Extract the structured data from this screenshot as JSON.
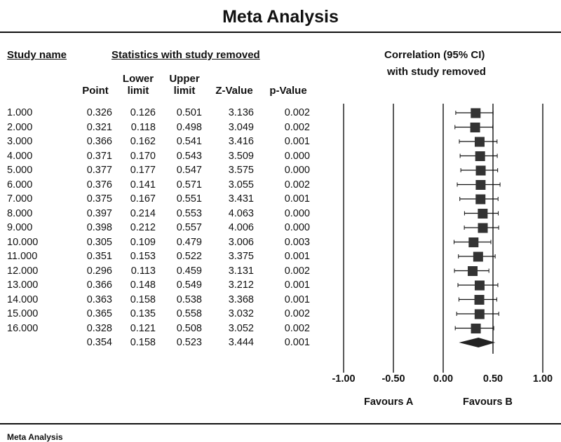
{
  "title": "Meta Analysis",
  "footer": "Meta Analysis",
  "headers": {
    "study_name": "Study name",
    "stats_group": "Statistics with study removed",
    "ci_group_line1": "Correlation (95% CI)",
    "ci_group_line2": "with study removed",
    "point": "Point",
    "lower_1": "Lower",
    "lower_2": "limit",
    "upper_1": "Upper",
    "upper_2": "limit",
    "zvalue": "Z-Value",
    "pvalue": "p-Value"
  },
  "favours": {
    "left": "Favours A",
    "right": "Favours B"
  },
  "chart_data": {
    "type": "forest",
    "xlim": [
      -1.0,
      1.0
    ],
    "x_ticks": [
      "-1.00",
      "-0.50",
      "0.00",
      "0.50",
      "1.00"
    ],
    "x_tick_values": [
      -1.0,
      -0.5,
      0.0,
      0.5,
      1.0
    ],
    "rows": [
      {
        "study": "1.000",
        "point": "0.326",
        "lower": "0.126",
        "upper": "0.501",
        "z": "3.136",
        "p": "0.002"
      },
      {
        "study": "2.000",
        "point": "0.321",
        "lower": "0.118",
        "upper": "0.498",
        "z": "3.049",
        "p": "0.002"
      },
      {
        "study": "3.000",
        "point": "0.366",
        "lower": "0.162",
        "upper": "0.541",
        "z": "3.416",
        "p": "0.001"
      },
      {
        "study": "4.000",
        "point": "0.371",
        "lower": "0.170",
        "upper": "0.543",
        "z": "3.509",
        "p": "0.000"
      },
      {
        "study": "5.000",
        "point": "0.377",
        "lower": "0.177",
        "upper": "0.547",
        "z": "3.575",
        "p": "0.000"
      },
      {
        "study": "6.000",
        "point": "0.376",
        "lower": "0.141",
        "upper": "0.571",
        "z": "3.055",
        "p": "0.002"
      },
      {
        "study": "7.000",
        "point": "0.375",
        "lower": "0.167",
        "upper": "0.551",
        "z": "3.431",
        "p": "0.001"
      },
      {
        "study": "8.000",
        "point": "0.397",
        "lower": "0.214",
        "upper": "0.553",
        "z": "4.063",
        "p": "0.000"
      },
      {
        "study": "9.000",
        "point": "0.398",
        "lower": "0.212",
        "upper": "0.557",
        "z": "4.006",
        "p": "0.000"
      },
      {
        "study": "10.000",
        "point": "0.305",
        "lower": "0.109",
        "upper": "0.479",
        "z": "3.006",
        "p": "0.003"
      },
      {
        "study": "11.000",
        "point": "0.351",
        "lower": "0.153",
        "upper": "0.522",
        "z": "3.375",
        "p": "0.001"
      },
      {
        "study": "12.000",
        "point": "0.296",
        "lower": "0.113",
        "upper": "0.459",
        "z": "3.131",
        "p": "0.002"
      },
      {
        "study": "13.000",
        "point": "0.366",
        "lower": "0.148",
        "upper": "0.549",
        "z": "3.212",
        "p": "0.001"
      },
      {
        "study": "14.000",
        "point": "0.363",
        "lower": "0.158",
        "upper": "0.538",
        "z": "3.368",
        "p": "0.001"
      },
      {
        "study": "15.000",
        "point": "0.365",
        "lower": "0.135",
        "upper": "0.558",
        "z": "3.032",
        "p": "0.002"
      },
      {
        "study": "16.000",
        "point": "0.328",
        "lower": "0.121",
        "upper": "0.508",
        "z": "3.052",
        "p": "0.002"
      }
    ],
    "summary": {
      "study": "",
      "point": "0.354",
      "lower": "0.158",
      "upper": "0.523",
      "z": "3.444",
      "p": "0.001"
    },
    "colors": {
      "marker": "#333333",
      "line": "#111111"
    }
  }
}
